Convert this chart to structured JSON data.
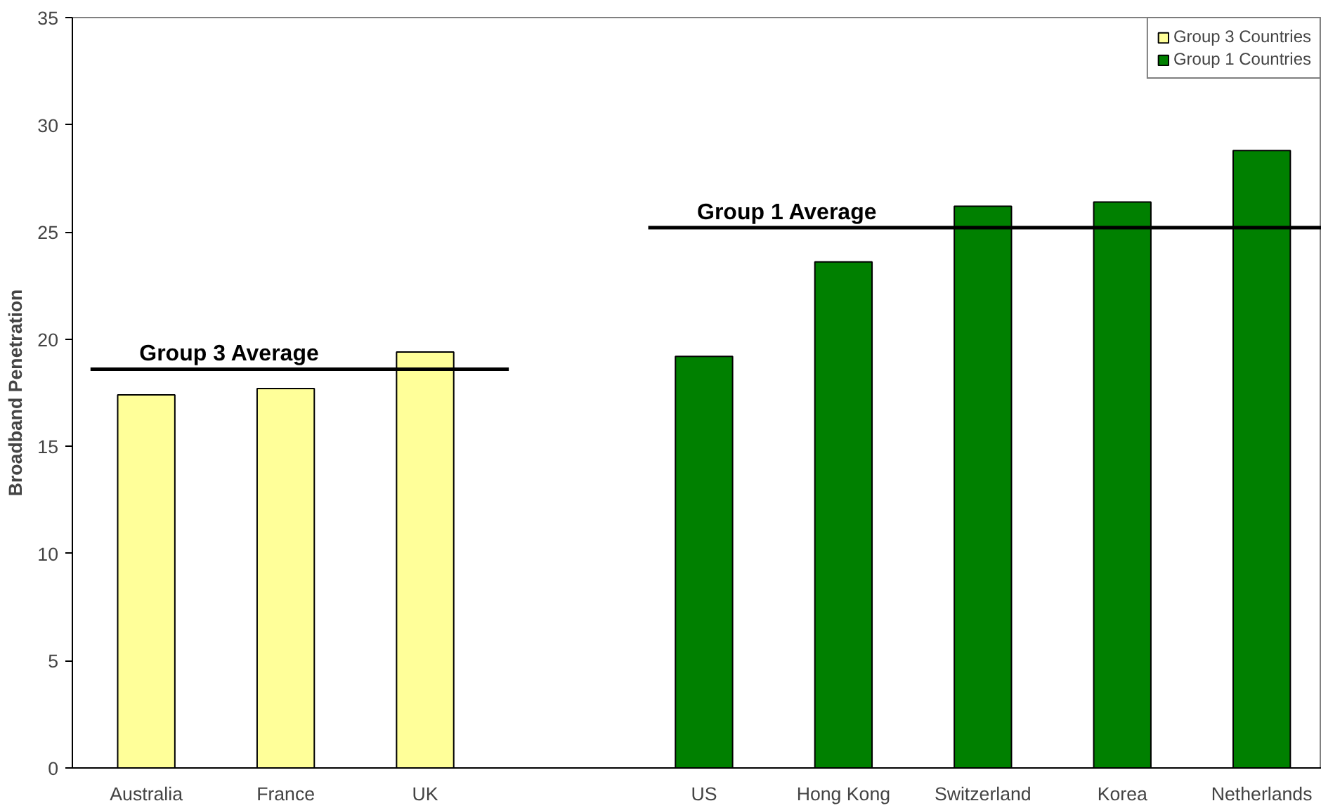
{
  "chart_data": {
    "type": "bar",
    "ylabel": "Broadband Penetration",
    "categories": [
      "Australia",
      "France",
      "UK",
      null,
      "US",
      "Hong Kong",
      "Switzerland",
      "Korea",
      "Netherlands"
    ],
    "series": [
      {
        "name": "Group 3 Countries",
        "color": "#ffff99",
        "values": [
          17.4,
          17.7,
          19.4,
          null,
          null,
          null,
          null,
          null,
          null
        ]
      },
      {
        "name": "Group 1 Countries",
        "color": "#008000",
        "values": [
          null,
          null,
          null,
          null,
          19.2,
          23.6,
          26.2,
          26.4,
          28.8
        ]
      }
    ],
    "ylim": [
      0,
      35
    ],
    "yticks": [
      0,
      5,
      10,
      15,
      20,
      25,
      30,
      35
    ],
    "ref_lines": [
      {
        "axis": "y",
        "value": 18.6,
        "label": "Group 3 Average",
        "color": "#000000"
      },
      {
        "axis": "y",
        "value": 25.2,
        "label": "Group 1 Average",
        "color": "#000000"
      }
    ],
    "grid": false,
    "legend": "top right"
  }
}
